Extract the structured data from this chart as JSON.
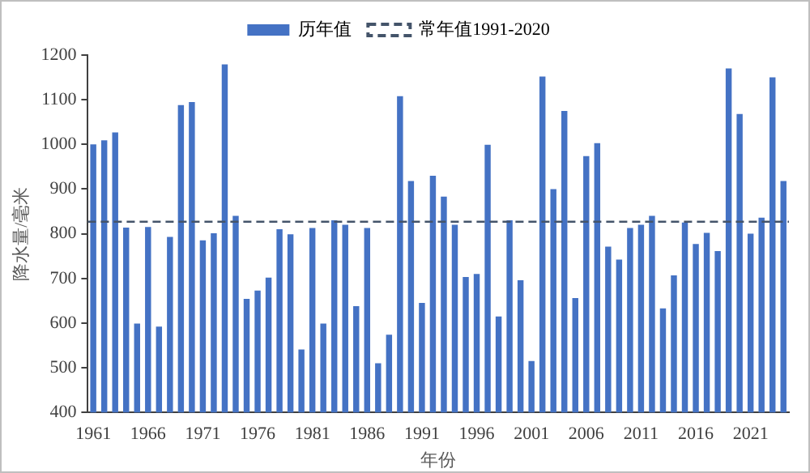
{
  "chart_data": {
    "type": "bar",
    "xlabel": "年份",
    "ylabel": "降水量/毫米",
    "categories": [
      "1961",
      null,
      null,
      null,
      null,
      "1966",
      null,
      null,
      null,
      null,
      "1971",
      null,
      null,
      null,
      null,
      "1976",
      null,
      null,
      null,
      null,
      "1981",
      null,
      null,
      null,
      null,
      "1986",
      null,
      null,
      null,
      null,
      "1991",
      null,
      null,
      null,
      null,
      "1996",
      null,
      null,
      null,
      null,
      "2001",
      null,
      null,
      null,
      null,
      "2006",
      null,
      null,
      null,
      null,
      "2011",
      null,
      null,
      null,
      null,
      "2016",
      null,
      null,
      null,
      null,
      "2021",
      null,
      null,
      null
    ],
    "series": [
      {
        "name": "历年值",
        "color": "#4472c4",
        "values": [
          1000,
          1009,
          1027,
          814,
          599,
          815,
          592,
          793,
          1088,
          1095,
          785,
          801,
          1179,
          840,
          654,
          673,
          702,
          810,
          799,
          541,
          813,
          599,
          830,
          820,
          638,
          813,
          510,
          574,
          1108,
          918,
          645,
          930,
          883,
          820,
          703,
          710,
          999,
          615,
          830,
          696,
          515,
          1152,
          900,
          1075,
          656,
          974,
          1003,
          771,
          742,
          813,
          820,
          840,
          633,
          707,
          825,
          777,
          802,
          761,
          1170,
          1068,
          800,
          836,
          1150,
          918
        ]
      }
    ],
    "ref_lines": [
      {
        "axis": "y",
        "value": 827,
        "label": "常年值1991-2020",
        "color": "#44546a",
        "line_style": "dashed"
      }
    ],
    "ylim": [
      400,
      1200
    ],
    "yticks": [
      400,
      500,
      600,
      700,
      800,
      900,
      1000,
      1100,
      1200
    ],
    "grid": false,
    "legend": "top"
  }
}
